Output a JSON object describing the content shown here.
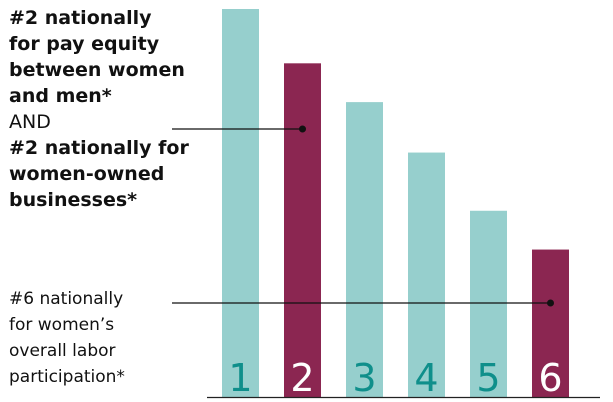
{
  "chart_data": {
    "type": "bar",
    "categories": [
      "1",
      "2",
      "3",
      "4",
      "5",
      "6"
    ],
    "values": [
      100,
      86,
      76,
      63,
      48,
      38
    ],
    "highlighted": [
      "2",
      "6"
    ],
    "colors": {
      "default": "#96cfcd",
      "highlight": "#8b2651",
      "default_label": "#0f8f8b",
      "highlight_label": "#ffffff",
      "text": "#111111",
      "axis": "#222222"
    },
    "ylim": [
      0,
      100
    ],
    "grid": false,
    "annotations": [
      {
        "target": "2",
        "lines": [
          {
            "text": "#2 nationally",
            "weight": "bold"
          },
          {
            "text": "for pay equity",
            "weight": "bold"
          },
          {
            "text": "between women",
            "weight": "bold"
          },
          {
            "text": "and men*",
            "weight": "bold"
          },
          {
            "text": "AND",
            "weight": "normal"
          },
          {
            "text": "#2 nationally for",
            "weight": "bold"
          },
          {
            "text": "women-owned",
            "weight": "bold"
          },
          {
            "text": "businesses*",
            "weight": "bold"
          }
        ]
      },
      {
        "target": "6",
        "lines": [
          {
            "text": "#6 nationally",
            "weight": "normal"
          },
          {
            "text": "for women’s",
            "weight": "normal"
          },
          {
            "text": "overall labor",
            "weight": "normal"
          },
          {
            "text": "participation*",
            "weight": "normal"
          }
        ]
      }
    ]
  }
}
